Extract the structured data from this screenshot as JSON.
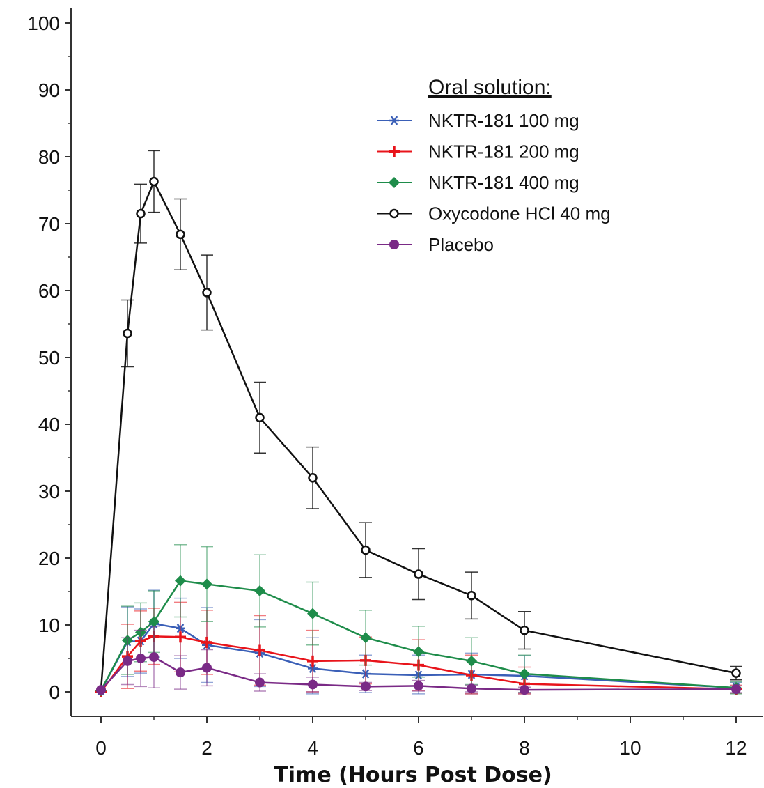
{
  "chart_data": {
    "type": "line",
    "title": "",
    "xlabel": "Time (Hours Post Dose)",
    "ylabel": "",
    "xlim": [
      -0.6,
      12.3
    ],
    "ylim": [
      -3.5,
      102
    ],
    "x_ticks": [
      0,
      2,
      4,
      6,
      8,
      10,
      12
    ],
    "x_tick_labels": [
      "0",
      "2",
      "4",
      "6",
      "8",
      "10",
      "12"
    ],
    "y_ticks": [
      0,
      10,
      20,
      30,
      40,
      50,
      60,
      70,
      80,
      90,
      100
    ],
    "y_tick_labels": [
      "0",
      "10",
      "20",
      "30",
      "40",
      "50",
      "60",
      "70",
      "80",
      "90",
      "100"
    ],
    "grid": false,
    "legend": {
      "title": "Oral solution:",
      "position": "top-right"
    },
    "series": [
      {
        "name": "NKTR-181 100 mg",
        "marker": "asterisk",
        "color": "#3a5fb7",
        "x": [
          0,
          0.5,
          0.75,
          1,
          1.5,
          2,
          3,
          4,
          5,
          6,
          7,
          8,
          12
        ],
        "y": [
          0.2,
          7.5,
          7.6,
          10.2,
          9.5,
          7.0,
          5.8,
          3.5,
          2.7,
          2.5,
          2.6,
          2.4,
          0.6
        ],
        "err": [
          0,
          5.2,
          4.8,
          5.0,
          4.5,
          5.6,
          5.0,
          4.6,
          2.8,
          3.0,
          3.2,
          3.0,
          0.8
        ]
      },
      {
        "name": "NKTR-181 200 mg",
        "marker": "plus",
        "color": "#e8141b",
        "x": [
          0,
          0.5,
          0.75,
          1,
          1.5,
          2,
          3,
          4,
          5,
          6,
          7,
          8,
          12
        ],
        "y": [
          0,
          5.3,
          7.6,
          8.3,
          8.2,
          7.4,
          6.2,
          4.6,
          4.7,
          4.0,
          2.5,
          1.2,
          0.4
        ],
        "err": [
          0,
          4.8,
          4.5,
          4.2,
          5.2,
          4.8,
          5.2,
          4.6,
          3.5,
          3.8,
          3.0,
          2.5,
          0.6
        ]
      },
      {
        "name": "NKTR-181 400 mg",
        "marker": "diamond",
        "color": "#1e8c4a",
        "x": [
          0,
          0.5,
          0.75,
          1,
          1.5,
          2,
          3,
          4,
          5,
          6,
          7,
          8,
          12
        ],
        "y": [
          0.2,
          7.7,
          8.9,
          10.5,
          16.6,
          16.1,
          15.1,
          11.7,
          8.1,
          6.0,
          4.6,
          2.7,
          0.6
        ],
        "err": [
          0,
          5.1,
          4.4,
          4.6,
          5.4,
          5.6,
          5.4,
          4.7,
          4.1,
          3.8,
          3.5,
          2.8,
          0.9
        ]
      },
      {
        "name": "Oxycodone HCl 40 mg",
        "marker": "open-circle",
        "color": "#111111",
        "x": [
          0,
          0.5,
          0.75,
          1,
          1.5,
          2,
          3,
          4,
          5,
          6,
          7,
          8,
          12
        ],
        "y": [
          0.3,
          53.6,
          71.5,
          76.3,
          68.4,
          59.7,
          41.0,
          32.0,
          21.2,
          17.6,
          14.4,
          9.2,
          2.8
        ],
        "err": [
          0,
          5.0,
          4.4,
          4.6,
          5.3,
          5.6,
          5.3,
          4.6,
          4.1,
          3.8,
          3.5,
          2.8,
          1.0
        ]
      },
      {
        "name": "Placebo",
        "marker": "filled-circle",
        "color": "#7a2a86",
        "x": [
          0,
          0.5,
          0.75,
          1,
          1.5,
          2,
          3,
          4,
          5,
          6,
          7,
          8,
          12
        ],
        "y": [
          0.3,
          4.6,
          5.0,
          5.2,
          2.9,
          3.6,
          1.4,
          1.1,
          0.8,
          0.9,
          0.5,
          0.3,
          0.4
        ],
        "err": [
          0,
          3.5,
          4.2,
          4.6,
          2.5,
          2.7,
          1.3,
          1.1,
          0.6,
          0.8,
          0.5,
          0.4,
          0.5
        ]
      }
    ]
  }
}
